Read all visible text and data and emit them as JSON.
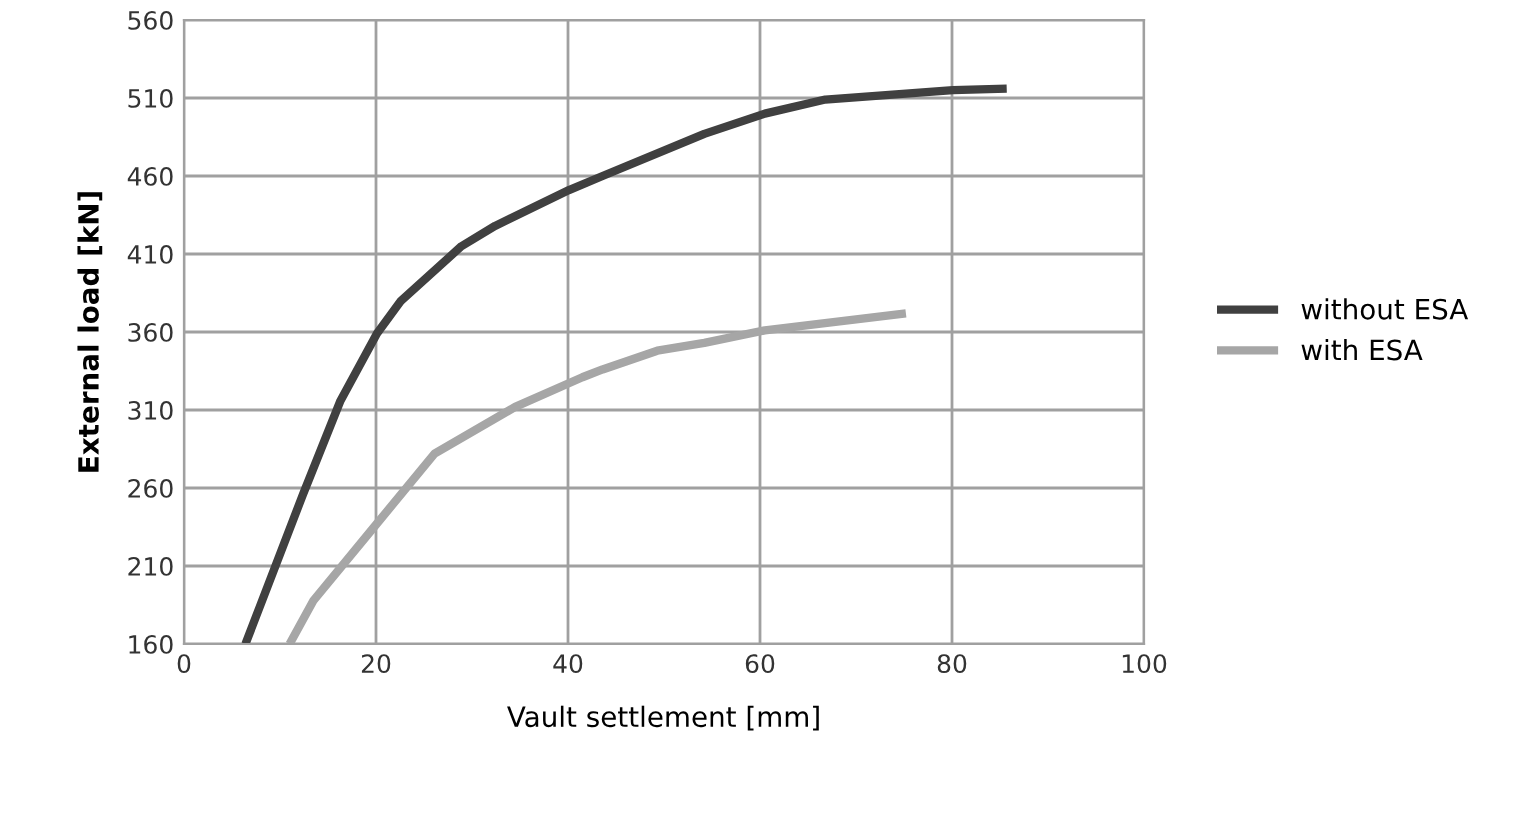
{
  "chart_data": {
    "type": "line",
    "xlabel": "Vault settlement [mm]",
    "ylabel": "External load [kN]",
    "xlim": [
      0,
      100
    ],
    "xticks": [
      0,
      20,
      40,
      60,
      80,
      100
    ],
    "ylim": [
      160,
      560
    ],
    "yticks": [
      160,
      210,
      260,
      310,
      360,
      410,
      460,
      510,
      560
    ],
    "grid": true,
    "legend": "right",
    "marker": "none",
    "line_style": "solid",
    "series": [
      {
        "name": "without ESA",
        "color": "#404040",
        "x": [
          6.4,
          12.4,
          16.3,
          20.1,
          22.6,
          28.9,
          32.4,
          40.1,
          43.6,
          54.2,
          60.5,
          66.8,
          80.1,
          85.7
        ],
        "values": [
          160,
          256,
          316,
          359,
          380,
          415,
          428,
          451,
          460,
          487,
          500,
          509,
          515,
          516
        ]
      },
      {
        "name": "with ESA",
        "color": "#a6a6a6",
        "x": [
          11,
          13.5,
          19.8,
          26.1,
          34.5,
          41.5,
          43.6,
          49.3,
          54.2,
          60.5,
          75.2
        ],
        "values": [
          160,
          188,
          235,
          282,
          312,
          331,
          336,
          348,
          353,
          361,
          372
        ]
      }
    ]
  }
}
